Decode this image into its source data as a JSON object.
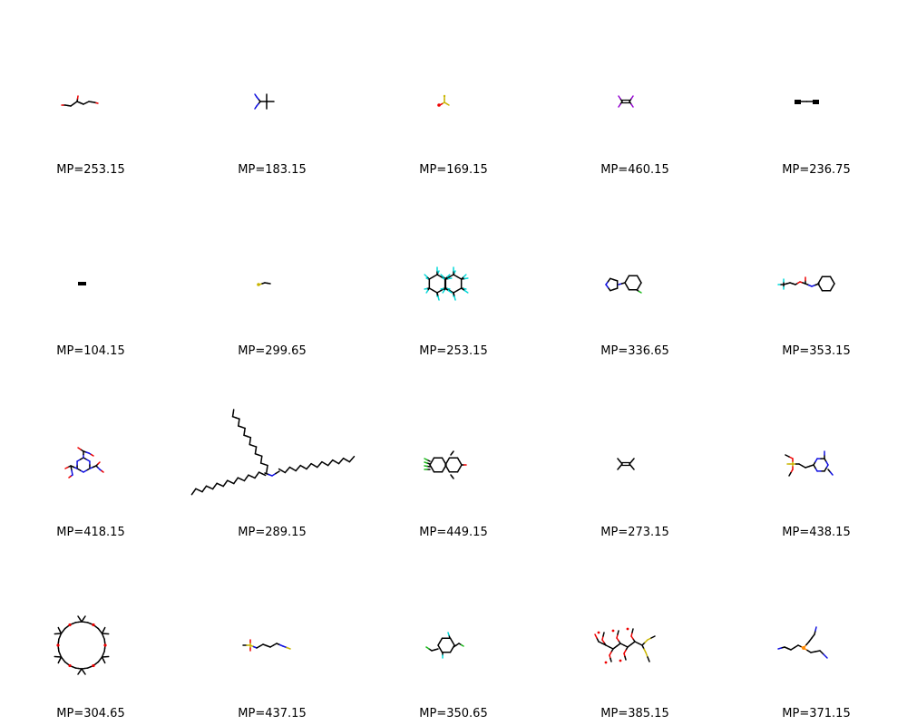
{
  "colors": {
    "carbon": "#000000",
    "nitrogen": "#1010e0",
    "oxygen": "#ee0000",
    "sulfur": "#c8b400",
    "fluorine": "#00d8d8",
    "chlorine": "#18b818",
    "phosphorus": "#ff8800",
    "iodine": "#9400d3",
    "background": "#ffffff"
  },
  "molecules": [
    {
      "label": "MP=253.15",
      "icon": "small-chain-alcohol-ester-structure"
    },
    {
      "label": "MP=183.15",
      "icon": "tert-butyl-amine-structure"
    },
    {
      "label": "MP=169.15",
      "icon": "small-sulfur-fluoride-structure"
    },
    {
      "label": "MP=460.15",
      "icon": "diiodo-alkene-structure"
    },
    {
      "label": "MP=236.75",
      "icon": "dibromo-ethane-structure"
    },
    {
      "label": "MP=104.15",
      "icon": "diatomic-bromine-structure"
    },
    {
      "label": "MP=299.65",
      "icon": "small-sulfur-chain-structure"
    },
    {
      "label": "MP=253.15",
      "icon": "perfluoro-decalin-structure"
    },
    {
      "label": "MP=336.65",
      "icon": "pyrrolyl-benzene-structure"
    },
    {
      "label": "MP=353.15",
      "icon": "cyclohexyl-carbamate-structure"
    },
    {
      "label": "MP=418.15",
      "icon": "nitro-triazinane-structure"
    },
    {
      "label": "MP=289.15",
      "icon": "long-chain-tertiary-amine-structure"
    },
    {
      "label": "MP=449.15",
      "icon": "chlorinated-polycycle-structure"
    },
    {
      "label": "MP=273.15",
      "icon": "small-halo-alkene-structure"
    },
    {
      "label": "MP=438.15",
      "icon": "sulfonate-triazine-structure"
    },
    {
      "label": "MP=304.65",
      "icon": "crown-ether-macrocycle-structure"
    },
    {
      "label": "MP=437.15",
      "icon": "sulfonyl-isothiocyanate-structure"
    },
    {
      "label": "MP=350.65",
      "icon": "fluoro-benzyl-chloride-structure"
    },
    {
      "label": "MP=385.15",
      "icon": "acetylated-sugar-thioacetal-structure"
    },
    {
      "label": "MP=371.15",
      "icon": "tris-cyanoethyl-phosphine-structure"
    }
  ]
}
